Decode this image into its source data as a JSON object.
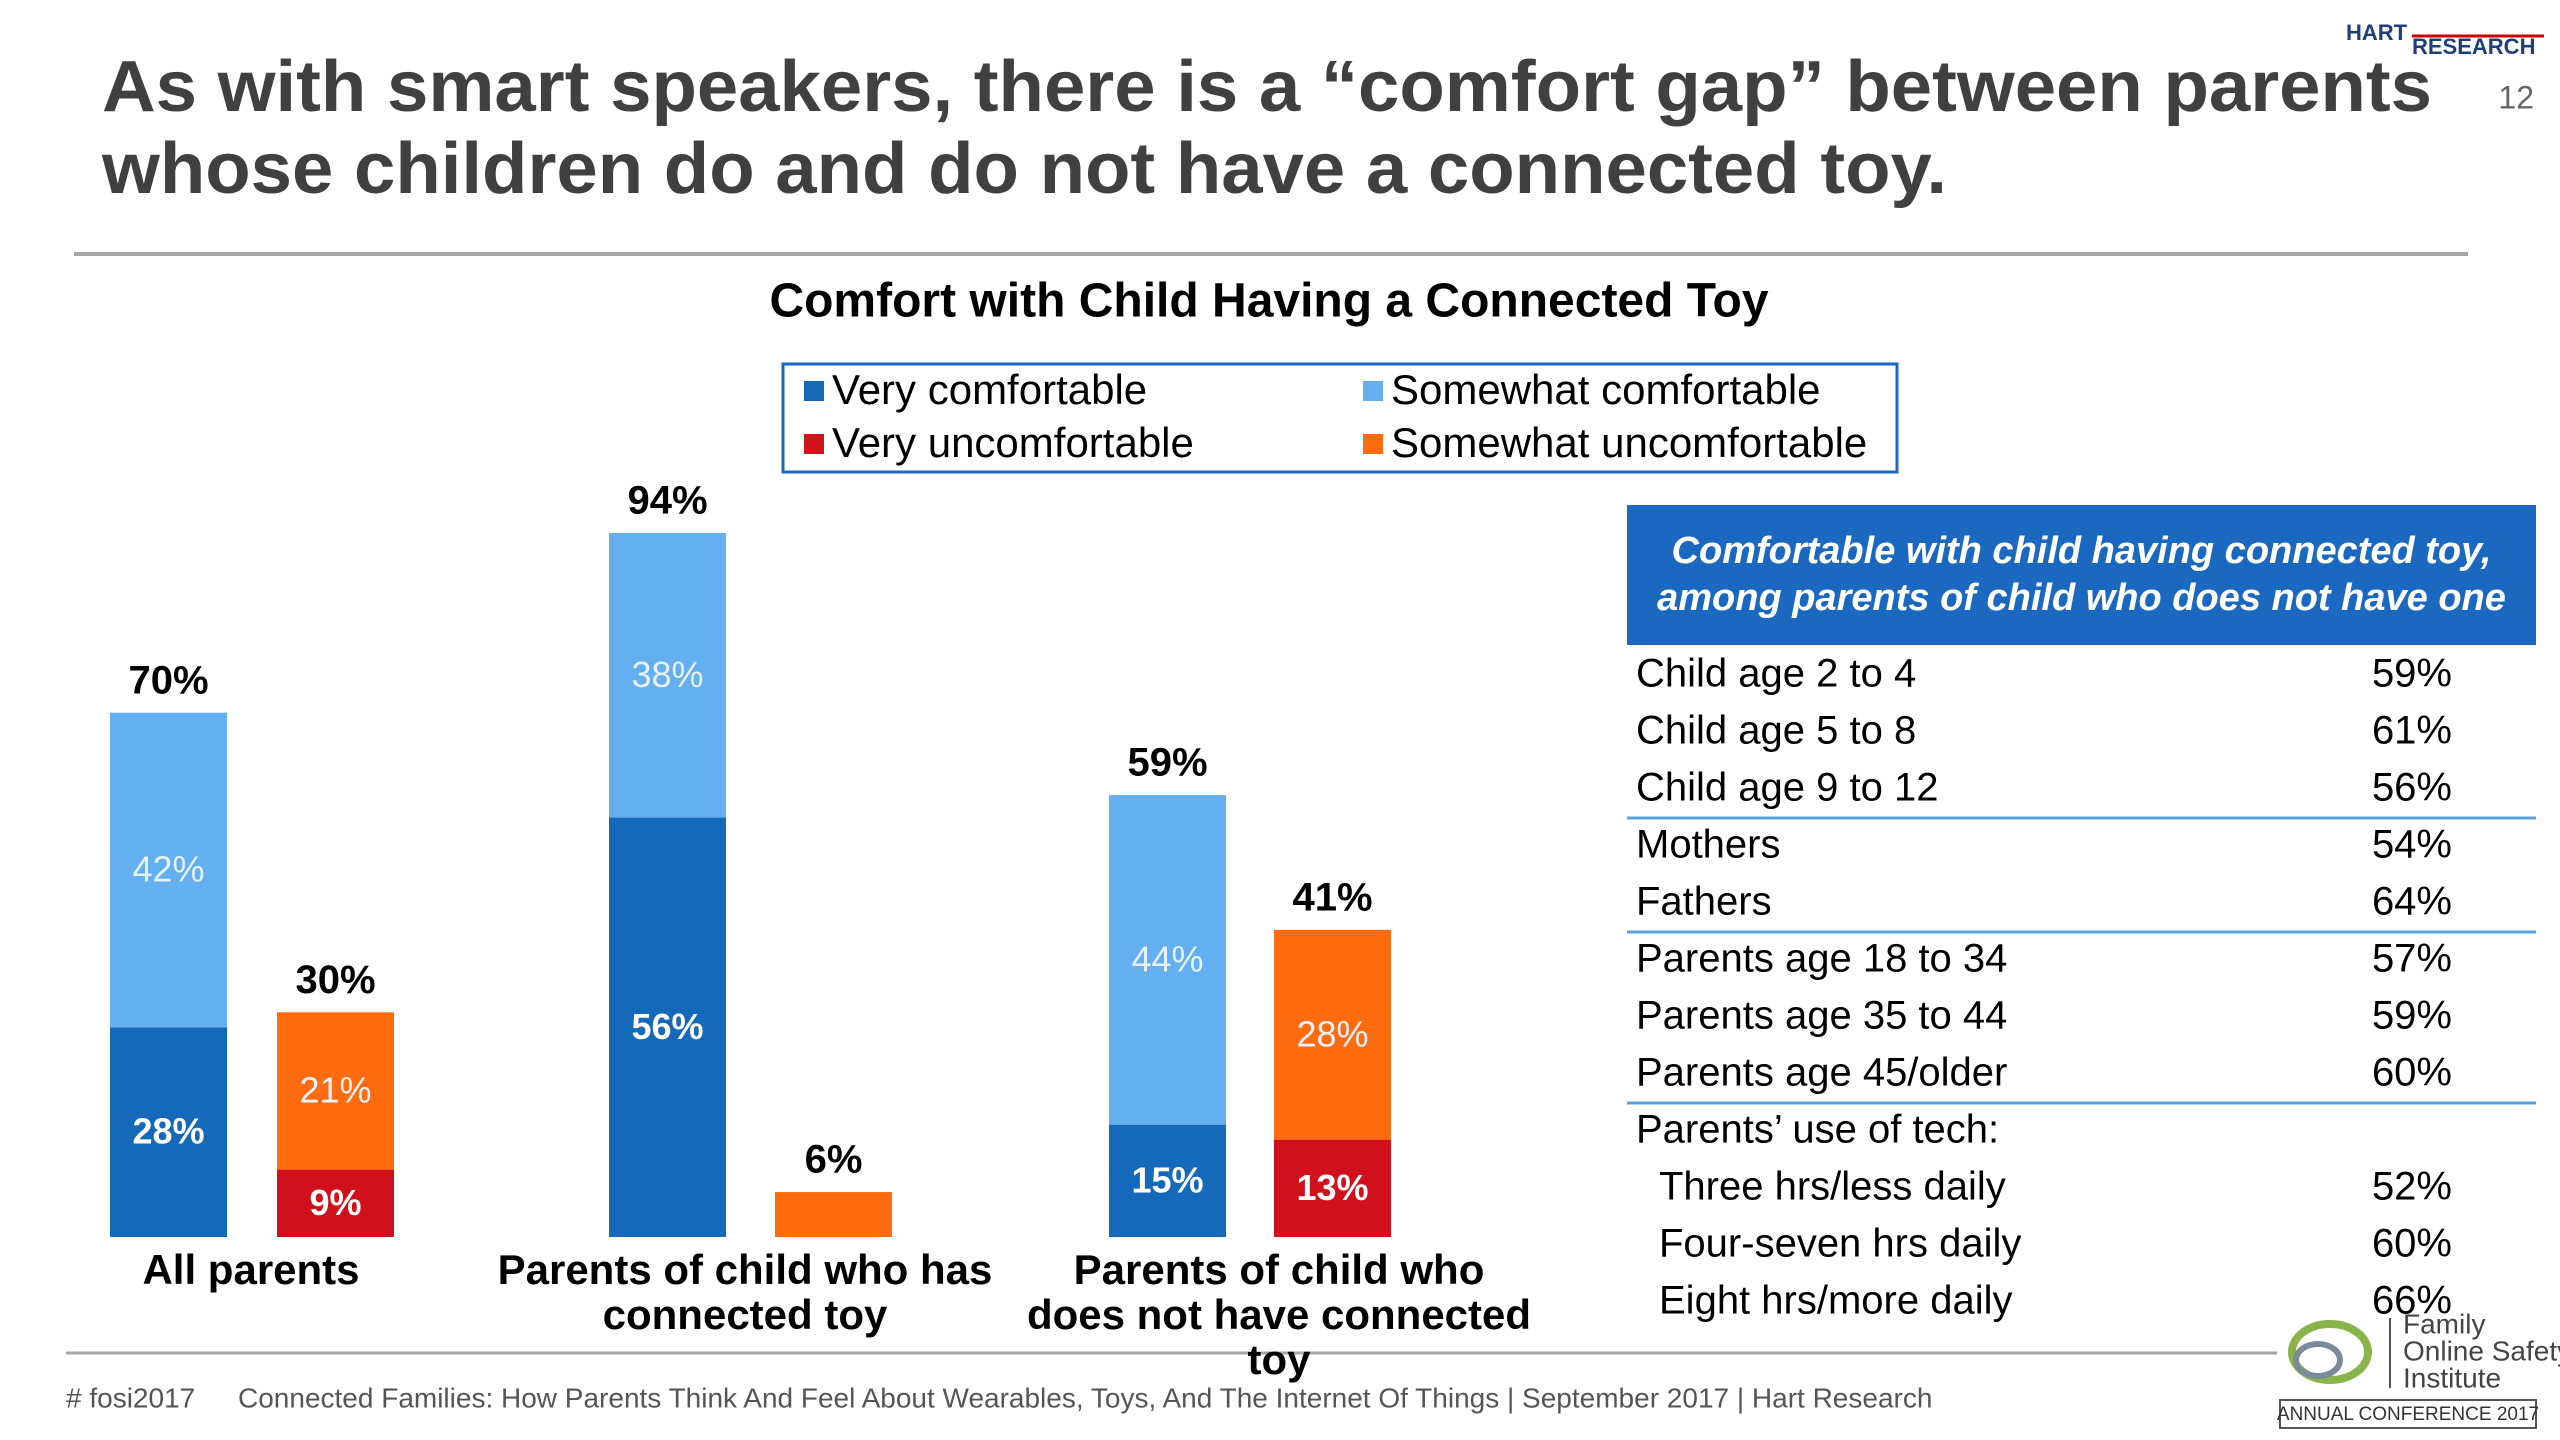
{
  "header": {
    "title_lines": [
      "As with smart speakers, there is a “comfort gap” between parents",
      "whose children do and do not have a connected toy."
    ],
    "brand": [
      "HART",
      "RESEARCH"
    ],
    "page_number": "12"
  },
  "chart_data": {
    "type": "bar",
    "stacked": true,
    "legend": "top",
    "title": "Comfort with Child Having a Connected Toy",
    "categories": [
      "All parents",
      "Parents of child who has connected toy",
      "Parents of child who does not have connected toy"
    ],
    "series": [
      {
        "name": "Very comfortable",
        "color": "#1469b9",
        "values": [
          28,
          56,
          15
        ],
        "value_labels": [
          "28%",
          "56%",
          "15%"
        ]
      },
      {
        "name": "Somewhat comfortable",
        "color": "#63aff0",
        "values": [
          42,
          38,
          44
        ],
        "value_labels": [
          "42%",
          "38%",
          "44%"
        ]
      },
      {
        "name": "Very uncomfortable",
        "color": "#d0101b",
        "values": [
          9,
          null,
          13
        ],
        "value_labels": [
          "9%",
          null,
          "13%"
        ]
      },
      {
        "name": "Somewhat uncomfortable",
        "color": "#ff6b0f",
        "values": [
          21,
          6,
          28
        ],
        "value_labels": [
          "21%",
          null,
          "28%"
        ]
      }
    ],
    "comfortable_totals": {
      "values": [
        70,
        94,
        59
      ],
      "value_labels": [
        "70%",
        "94%",
        "59%"
      ]
    },
    "uncomfortable_totals": {
      "values": [
        30,
        6,
        41
      ],
      "value_labels": [
        "30%",
        "6%",
        "41%"
      ]
    }
  },
  "table": {
    "header": "Comfortable with child having connected toy, among parents of child who does not have one",
    "groups": [
      [
        {
          "label": "Child age 2 to 4",
          "value": "59%"
        },
        {
          "label": "Child age 5 to 8",
          "value": "61%"
        },
        {
          "label": "Child age 9 to 12",
          "value": "56%"
        }
      ],
      [
        {
          "label": "Mothers",
          "value": "54%"
        },
        {
          "label": "Fathers",
          "value": "64%"
        }
      ],
      [
        {
          "label": "Parents age 18 to 34",
          "value": "57%"
        },
        {
          "label": "Parents age 35 to 44",
          "value": "59%"
        },
        {
          "label": "Parents age 45/older",
          "value": "60%"
        }
      ],
      [
        {
          "label": "Parents’ use of tech:",
          "rows": [
            {
              "label": "Three hrs/less daily",
              "value": "52%"
            },
            {
              "label": "Four-seven hrs daily",
              "value": "60%"
            },
            {
              "label": "Eight hrs/more daily",
              "value": "66%"
            }
          ]
        }
      ]
    ]
  },
  "footer": {
    "hashtag": "# fosi2017",
    "source": "Connected Families: How Parents Think And Feel About Wearables, Toys, And The Internet Of Things | September 2017 | Hart Research"
  },
  "logo": {
    "name_lines": [
      "Family",
      "Online Safety",
      "Institute"
    ],
    "event": "ANNUAL CONFERENCE 2017"
  }
}
